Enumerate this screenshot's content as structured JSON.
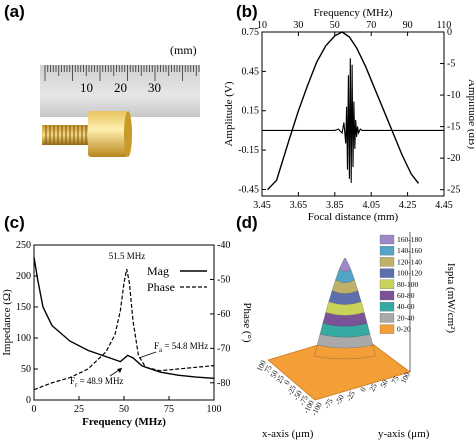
{
  "panels": {
    "a": "(a)",
    "b": "(b)",
    "c": "(c)",
    "d": "(d)"
  },
  "photo": {
    "ruler_unit": "(mm)",
    "ruler_numbers": [
      "10",
      "20",
      "30"
    ]
  },
  "chart_data": [
    {
      "panel": "b",
      "type": "line",
      "xlabel": "Focal distance (mm)",
      "x_ticks": [
        "3.45",
        "3.65",
        "3.85",
        "4.05",
        "4.25",
        "4.45"
      ],
      "xlim": [
        3.45,
        4.45
      ],
      "ylabel_left": "Amplitude (V)",
      "y_ticks_left": [
        "0.75",
        "0.45",
        "0.15",
        "-0.15",
        "-0.45"
      ],
      "ylim_left": [
        -0.5,
        0.75
      ],
      "top_xlabel": "Frequency (MHz)",
      "top_x_ticks": [
        "10",
        "30",
        "50",
        "70",
        "90",
        "110"
      ],
      "top_xlim": [
        10,
        110
      ],
      "ylabel_right": "Amplitude (dB)",
      "y_ticks_right": [
        "0",
        "-5",
        "-10",
        "-15",
        "-20",
        "-25"
      ],
      "ylim_right": [
        -26,
        0
      ],
      "series": [
        {
          "axis": "top-right",
          "x": [
            13,
            18,
            25,
            30,
            35,
            40,
            45,
            50,
            54,
            58,
            62,
            67,
            72,
            77,
            82,
            87,
            92,
            96
          ],
          "y": [
            -25,
            -23.5,
            -17,
            -12.5,
            -8.5,
            -4.8,
            -2.2,
            -0.6,
            0,
            -0.8,
            -2.5,
            -5.5,
            -9,
            -12.5,
            -16,
            -19.5,
            -22.5,
            -24
          ]
        },
        {
          "axis": "bottom-left",
          "x": [
            3.45,
            3.85,
            3.87,
            3.89,
            3.9,
            3.91,
            3.915,
            3.92,
            3.925,
            3.93,
            3.935,
            3.94,
            3.945,
            3.95,
            3.955,
            3.96,
            3.965,
            3.97,
            3.975,
            3.98,
            3.99,
            4.0,
            4.02,
            4.45
          ],
          "y": [
            0,
            0,
            0.01,
            -0.02,
            0.06,
            -0.1,
            0.18,
            -0.3,
            0.42,
            -0.37,
            0.55,
            -0.4,
            0.5,
            -0.28,
            0.22,
            -0.14,
            0.08,
            -0.05,
            0.03,
            -0.02,
            0.01,
            0,
            0,
            0
          ]
        }
      ]
    },
    {
      "panel": "c",
      "type": "line",
      "xlabel": "Frequency (MHz)",
      "x_ticks": [
        "0",
        "25",
        "50",
        "75",
        "100"
      ],
      "xlim": [
        0,
        100
      ],
      "ylabel_left": "Impedance (Ω)",
      "y_ticks_left": [
        "0",
        "50",
        "100",
        "150",
        "200",
        "250"
      ],
      "ylim_left": [
        0,
        250
      ],
      "ylabel_right": "Phase (°)",
      "y_ticks_right": [
        "-40",
        "-50",
        "-60",
        "-70",
        "-80"
      ],
      "ylim_right": [
        -85,
        -40
      ],
      "legend": {
        "position": "top-right",
        "entries": [
          "Mag",
          "Phase"
        ]
      },
      "annotations": [
        "51.5 MHz",
        "F",
        "a",
        " = 54.8 MHz",
        "F",
        "r",
        " = 48.9 MHz"
      ],
      "series": [
        {
          "name": "Mag",
          "x": [
            0,
            2,
            5,
            10,
            20,
            30,
            40,
            48,
            52,
            55,
            60,
            70,
            80,
            90,
            100
          ],
          "y": [
            230,
            195,
            150,
            120,
            95,
            80,
            70,
            62,
            72,
            68,
            55,
            45,
            40,
            37,
            35
          ]
        },
        {
          "name": "Phase",
          "x": [
            0,
            10,
            20,
            30,
            40,
            45,
            48,
            50,
            51.5,
            53,
            55,
            58,
            62,
            70,
            80,
            90,
            100
          ],
          "y": [
            -82,
            -80,
            -78.5,
            -76,
            -71,
            -66,
            -59,
            -51,
            -47,
            -51,
            -62,
            -72,
            -75.5,
            -76.5,
            -76,
            -75.5,
            -75
          ]
        }
      ]
    },
    {
      "panel": "d",
      "type": "heatmap",
      "xlabel": "x-axis (μm)",
      "ylabel": "y-axis (μm)",
      "zlabel": "Ispta (mW/cm²)",
      "x_ticks": [
        "100",
        "75",
        "50",
        "25",
        "0",
        "-25",
        "-50",
        "-75",
        "-100"
      ],
      "y_ticks": [
        "-100",
        "-75",
        "-50",
        "-25",
        "0",
        "25",
        "50",
        "75",
        "100"
      ],
      "legend": {
        "position": "right",
        "entries": [
          {
            "label": "160-180",
            "color": "#9e88c9"
          },
          {
            "label": "140-160",
            "color": "#53a5c8"
          },
          {
            "label": "120-140",
            "color": "#bfb268"
          },
          {
            "label": "100-120",
            "color": "#5e6fae"
          },
          {
            "label": "80-100",
            "color": "#c9d35a"
          },
          {
            "label": "60-80",
            "color": "#7a5298"
          },
          {
            "label": "40-60",
            "color": "#36a9a3"
          },
          {
            "label": "20-40",
            "color": "#a9a9a9"
          },
          {
            "label": "0-20",
            "color": "#f39e37"
          }
        ]
      }
    }
  ]
}
